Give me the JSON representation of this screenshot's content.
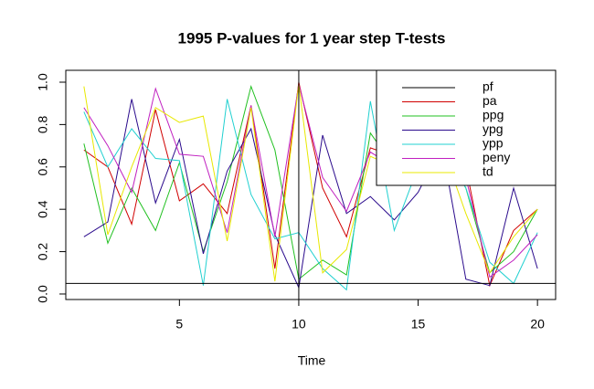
{
  "chart_data": {
    "type": "line",
    "title": "1995  P-values for 1 year step T-tests",
    "x_label": "Time",
    "x": [
      1,
      2,
      3,
      4,
      5,
      6,
      7,
      8,
      9,
      10,
      11,
      12,
      13,
      14,
      15,
      16,
      17,
      18,
      19,
      20
    ],
    "xlim": [
      0.24,
      20.76
    ],
    "xticks": [
      5,
      10,
      15,
      20
    ],
    "ylim": [
      -0.026,
      1.056
    ],
    "yticks": [
      {
        "value": 0,
        "label": "0.0"
      },
      0.2,
      0.4,
      0.6,
      0.8,
      {
        "value": 1,
        "label": "1.0"
      }
    ],
    "hline": 0.05,
    "vline": 10,
    "legend": "top-right",
    "series": [
      {
        "name": "pf",
        "color": "#000000",
        "values": [
          null,
          null,
          null,
          null,
          null,
          null,
          null,
          null,
          null,
          null,
          null,
          null,
          null,
          null,
          null,
          null,
          null,
          null,
          null,
          null
        ]
      },
      {
        "name": "pa",
        "color": "#d00000",
        "values": [
          0.68,
          0.6,
          0.33,
          0.87,
          0.44,
          0.52,
          0.38,
          0.89,
          0.12,
          1.0,
          0.5,
          0.27,
          0.69,
          0.65,
          0.6,
          0.7,
          0.6,
          0.04,
          0.3,
          0.4
        ]
      },
      {
        "name": "ppg",
        "color": "#20c020",
        "values": [
          0.71,
          0.24,
          0.5,
          0.3,
          0.62,
          0.2,
          0.53,
          0.98,
          0.68,
          0.07,
          0.16,
          0.09,
          0.76,
          0.6,
          0.65,
          0.7,
          0.5,
          0.1,
          0.2,
          0.4
        ]
      },
      {
        "name": "ypg",
        "color": "#2a0a8c",
        "values": [
          0.27,
          0.34,
          0.92,
          0.43,
          0.73,
          0.19,
          0.58,
          0.78,
          0.28,
          0.03,
          0.75,
          0.38,
          0.46,
          0.35,
          0.48,
          0.7,
          0.07,
          0.04,
          0.5,
          0.12
        ]
      },
      {
        "name": "ypp",
        "color": "#20d0d0",
        "values": [
          0.86,
          0.6,
          0.78,
          0.64,
          0.63,
          0.04,
          0.92,
          0.47,
          0.26,
          0.29,
          0.12,
          0.02,
          0.91,
          0.3,
          0.6,
          0.7,
          0.5,
          0.15,
          0.05,
          0.29
        ]
      },
      {
        "name": "peny",
        "color": "#c020c0",
        "values": [
          0.88,
          0.7,
          0.48,
          0.97,
          0.66,
          0.65,
          0.29,
          0.89,
          0.27,
          0.99,
          0.55,
          0.39,
          0.67,
          0.6,
          0.65,
          0.7,
          0.55,
          0.08,
          0.16,
          0.28
        ]
      },
      {
        "name": "td",
        "color": "#e8e800",
        "values": [
          0.98,
          0.28,
          0.6,
          0.88,
          0.81,
          0.84,
          0.25,
          0.88,
          0.06,
          0.99,
          0.1,
          0.21,
          0.65,
          0.6,
          0.65,
          0.7,
          0.38,
          0.1,
          0.27,
          0.4
        ]
      }
    ]
  }
}
